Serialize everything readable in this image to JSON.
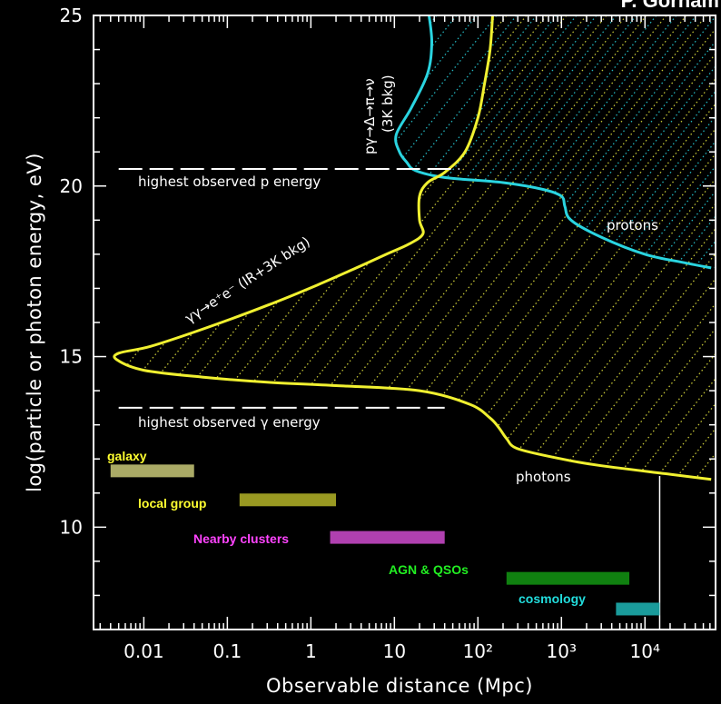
{
  "credit": "P. Gorham",
  "chart_data": {
    "type": "line",
    "xlabel": "Observable distance (Mpc)",
    "ylabel": "log(particle or photon energy, eV)",
    "x_scale": "log",
    "xlim": [
      0.0025,
      70000
    ],
    "ylim": [
      7,
      25
    ],
    "x_ticks": [
      {
        "value": 0.01,
        "label": "0.01"
      },
      {
        "value": 0.1,
        "label": "0.1"
      },
      {
        "value": 1,
        "label": "1"
      },
      {
        "value": 10,
        "label": "10"
      },
      {
        "value": 100,
        "label": "10²"
      },
      {
        "value": 1000,
        "label": "10³"
      },
      {
        "value": 10000,
        "label": "10⁴"
      }
    ],
    "y_ticks": [
      {
        "value": 10,
        "label": "10"
      },
      {
        "value": 15,
        "label": "15"
      },
      {
        "value": 20,
        "label": "20"
      },
      {
        "value": 25,
        "label": "25"
      }
    ],
    "series": [
      {
        "name": "protons",
        "color": "#2ad4e0",
        "points": [
          [
            26,
            25
          ],
          [
            28,
            24.2
          ],
          [
            25,
            23.3
          ],
          [
            16,
            22.3
          ],
          [
            10.5,
            21.5
          ],
          [
            11.5,
            21
          ],
          [
            14,
            20.7
          ],
          [
            18,
            20.45
          ],
          [
            40,
            20.25
          ],
          [
            200,
            20.1
          ],
          [
            600,
            19.9
          ],
          [
            1000,
            19.7
          ],
          [
            1100,
            19.4
          ],
          [
            1300,
            19.0
          ],
          [
            3000,
            18.5
          ],
          [
            10000,
            18.0
          ],
          [
            30000,
            17.75
          ],
          [
            62000,
            17.6
          ]
        ]
      },
      {
        "name": "photons",
        "color": "#f0f030",
        "points": [
          [
            150,
            25
          ],
          [
            140,
            24
          ],
          [
            120,
            23
          ],
          [
            100,
            22
          ],
          [
            70,
            21
          ],
          [
            40,
            20.4
          ],
          [
            25,
            20.1
          ],
          [
            20,
            19.7
          ],
          [
            20,
            19.0
          ],
          [
            22,
            18.6
          ],
          [
            15,
            18.3
          ],
          [
            8,
            18.0
          ],
          [
            3.5,
            17.6
          ],
          [
            1.2,
            17.1
          ],
          [
            0.3,
            16.5
          ],
          [
            0.05,
            15.8
          ],
          [
            0.012,
            15.3
          ],
          [
            0.005,
            15.1
          ],
          [
            0.0048,
            14.9
          ],
          [
            0.01,
            14.6
          ],
          [
            0.05,
            14.4
          ],
          [
            0.3,
            14.25
          ],
          [
            2,
            14.15
          ],
          [
            20,
            14.0
          ],
          [
            80,
            13.6
          ],
          [
            140,
            13.2
          ],
          [
            180,
            12.9
          ],
          [
            220,
            12.6
          ],
          [
            300,
            12.3
          ],
          [
            1000,
            12.0
          ],
          [
            3000,
            11.8
          ],
          [
            20000,
            11.55
          ],
          [
            62000,
            11.4
          ]
        ]
      }
    ],
    "reference_lines": [
      {
        "label": "highest observed p energy",
        "y": 20.5,
        "x_range": [
          0.005,
          60
        ]
      },
      {
        "label": "highest observed γ energy",
        "y": 13.5,
        "x_range": [
          0.005,
          40
        ]
      }
    ],
    "horizon_line": {
      "x": 15000,
      "y_range": [
        7,
        11.5
      ]
    },
    "curve_labels": [
      {
        "text": "pγ→Δ→π→ν",
        "color": "#ffffff"
      },
      {
        "text": "(3K bkg)",
        "color": "#ffffff"
      },
      {
        "text": "γγ→e⁺e⁻ (IR+3K bkg)",
        "color": "#ffffff"
      },
      {
        "text": "protons",
        "color": "#ffffff"
      },
      {
        "text": "photons",
        "color": "#ffffff"
      }
    ],
    "scale_bars": [
      {
        "label": "galaxy",
        "x_range": [
          0.004,
          0.04
        ],
        "y": 11.65,
        "color": "#aaaa66"
      },
      {
        "label": "local group",
        "x_range": [
          0.14,
          2
        ],
        "y": 10.8,
        "color": "#999922"
      },
      {
        "label": "Nearby clusters",
        "x_range": [
          1.7,
          40
        ],
        "y": 9.7,
        "color": "#b040b0"
      },
      {
        "label": "AGN & QSOs",
        "x_range": [
          220,
          6500
        ],
        "y": 8.5,
        "color": "#108010"
      },
      {
        "label": "cosmology",
        "x_range": [
          4500,
          15000
        ],
        "y": 7.6,
        "color": "#1a9b9b"
      }
    ],
    "scale_label_colors": [
      "#ffff30",
      "#ffff30",
      "#ff44ff",
      "#22ee22",
      "#22dddd"
    ],
    "grid": false,
    "hatching": "dotted diagonal fill in the regions beyond each attenuation curve"
  }
}
